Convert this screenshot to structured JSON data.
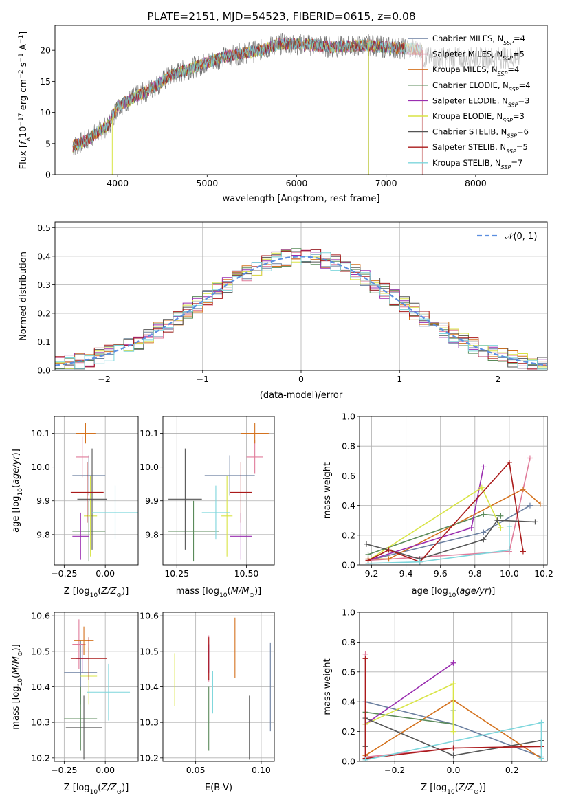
{
  "figure_title": "PLATE=2151, MJD=54523, FIBERID=0615, z=0.08",
  "series_colors": {
    "Chabrier MILES": "#6a7fa0",
    "Salpeter MILES": "#e07b9a",
    "Kroupa MILES": "#d4721e",
    "Chabrier ELODIE": "#5a8a5a",
    "Salpeter ELODIE": "#9a2eb0",
    "Kroupa ELODIE": "#d8e444",
    "Chabrier STELIB": "#555555",
    "Salpeter STELIB": "#aa1a1a",
    "Kroupa STELIB": "#7dd6dc"
  },
  "chart_data": [
    {
      "id": "spectrum",
      "type": "line",
      "title": "PLATE=2151, MJD=54523, FIBERID=0615, z=0.08",
      "xlabel": "wavelength [Angstrom, rest frame]",
      "ylabel": "Flux [f_λ 10^-17 erg cm^-2 s^-1 A^-1]",
      "xlim": [
        3300,
        8800
      ],
      "ylim": [
        0,
        24
      ],
      "xticks": [
        "4000",
        "5000",
        "6000",
        "7000",
        "8000"
      ],
      "yticks": [
        "0",
        "5",
        "10",
        "15",
        "20"
      ],
      "grid": false,
      "legend_position": "right",
      "legend": [
        "Chabrier MILES, N_SSP=4",
        "Salpeter MILES, N_SSP=5",
        "Kroupa MILES, N_SSP=4",
        "Chabrier ELODIE, N_SSP=4",
        "Salpeter ELODIE, N_SSP=3",
        "Kroupa ELODIE, N_SSP=3",
        "Chabrier STELIB, N_SSP=6",
        "Salpeter STELIB, N_SSP=5",
        "Kroupa STELIB, N_SSP=7"
      ],
      "continuum": {
        "wavelength": [
          3500,
          3650,
          3800,
          3900,
          3950,
          4000,
          4200,
          4400,
          4600,
          4800,
          5000,
          5200,
          5400,
          5600,
          5800,
          6000,
          6200,
          6400,
          6600,
          6800,
          7000,
          7200,
          7300,
          7400
        ],
        "flux": [
          4.5,
          5.5,
          7,
          8,
          9.5,
          11,
          12.5,
          14,
          16,
          17,
          18,
          19,
          19.5,
          20,
          21,
          21,
          20.8,
          20.5,
          20.7,
          20.8,
          20.5,
          20.3,
          20.2,
          20
        ]
      },
      "data_extends_to": 8500
    },
    {
      "id": "residuals",
      "type": "line",
      "xlabel": "(data-model)/error",
      "ylabel": "Normed distribution",
      "xlim": [
        -2.5,
        2.5
      ],
      "ylim": [
        0,
        0.52
      ],
      "xticks": [
        "−2",
        "−1",
        "0",
        "1",
        "2"
      ],
      "yticks": [
        "0.0",
        "0.1",
        "0.2",
        "0.3",
        "0.4",
        "0.5"
      ],
      "grid": true,
      "legend_position": "top-right",
      "legend": [
        "𝒩(0, 1)"
      ],
      "reference_curve": "normal(0,1)",
      "histogram_bin_width": 0.1
    },
    {
      "id": "age-vs-Z",
      "type": "scatter",
      "xlabel": "Z [log10(Z/Z⊙)]",
      "ylabel": "age  [log10(age/yr)]",
      "xlim": [
        -0.31,
        0.2
      ],
      "ylim": [
        9.71,
        10.15
      ],
      "xticks": [
        "−0.25",
        "0.00"
      ],
      "yticks": [
        "9.8",
        "9.9",
        "10.0",
        "10.1"
      ],
      "grid": true,
      "points": [
        {
          "series": "Chabrier MILES",
          "x": -0.1,
          "xerr": 0.1,
          "y": 9.975,
          "yerr": 0.06
        },
        {
          "series": "Salpeter MILES",
          "x": -0.14,
          "xerr": 0.04,
          "y": 10.03,
          "yerr": 0.06
        },
        {
          "series": "Kroupa MILES",
          "x": -0.12,
          "xerr": 0.06,
          "y": 10.1,
          "yerr": 0.03
        },
        {
          "series": "Chabrier ELODIE",
          "x": -0.1,
          "xerr": 0.1,
          "y": 9.81,
          "yerr": 0.09
        },
        {
          "series": "Salpeter ELODIE",
          "x": -0.15,
          "xerr": 0.05,
          "y": 9.795,
          "yerr": 0.07
        },
        {
          "series": "Kroupa ELODIE",
          "x": -0.09,
          "xerr": 0.04,
          "y": 9.855,
          "yerr": 0.12
        },
        {
          "series": "Chabrier STELIB",
          "x": -0.08,
          "xerr": 0.09,
          "y": 9.905,
          "yerr": 0.15
        },
        {
          "series": "Salpeter STELIB",
          "x": -0.11,
          "xerr": 0.1,
          "y": 9.925,
          "yerr": 0.09
        },
        {
          "series": "Kroupa STELIB",
          "x": 0.06,
          "xerr": 0.14,
          "y": 9.865,
          "yerr": 0.08
        }
      ]
    },
    {
      "id": "age-vs-mass",
      "type": "scatter",
      "xlabel": "mass [log10(M/M⊙)]",
      "ylabel": "",
      "xlim": [
        10.2,
        10.6
      ],
      "ylim": [
        9.71,
        10.15
      ],
      "xticks": [
        "10.25",
        "10.50"
      ],
      "yticks": [
        "9.8",
        "9.9",
        "10.0",
        "10.1"
      ],
      "grid": true,
      "points": [
        {
          "series": "Chabrier MILES",
          "x": 10.44,
          "xerr": 0.09,
          "y": 9.975,
          "yerr": 0.06
        },
        {
          "series": "Salpeter MILES",
          "x": 10.53,
          "xerr": 0.03,
          "y": 10.03,
          "yerr": 0.05
        },
        {
          "series": "Kroupa MILES",
          "x": 10.53,
          "xerr": 0.05,
          "y": 10.1,
          "yerr": 0.03
        },
        {
          "series": "Chabrier ELODIE",
          "x": 10.31,
          "xerr": 0.09,
          "y": 9.81,
          "yerr": 0.09
        },
        {
          "series": "Salpeter ELODIE",
          "x": 10.48,
          "xerr": 0.04,
          "y": 9.795,
          "yerr": 0.07
        },
        {
          "series": "Kroupa ELODIE",
          "x": 10.43,
          "xerr": 0.02,
          "y": 9.855,
          "yerr": 0.12
        },
        {
          "series": "Chabrier STELIB",
          "x": 10.28,
          "xerr": 0.06,
          "y": 9.905,
          "yerr": 0.15
        },
        {
          "series": "Salpeter STELIB",
          "x": 10.48,
          "xerr": 0.04,
          "y": 9.925,
          "yerr": 0.09
        },
        {
          "series": "Kroupa STELIB",
          "x": 10.39,
          "xerr": 0.05,
          "y": 9.865,
          "yerr": 0.08
        }
      ]
    },
    {
      "id": "weight-vs-age",
      "type": "line",
      "xlabel": "age  [log10(age/yr)]",
      "ylabel": "mass weight",
      "xlim": [
        9.13,
        10.22
      ],
      "ylim": [
        0,
        1.0
      ],
      "xticks": [
        "9.2",
        "9.4",
        "9.6",
        "9.8",
        "10.0",
        "10.2"
      ],
      "yticks": [
        "0.0",
        "0.2",
        "0.4",
        "0.6",
        "0.8",
        "1.0"
      ],
      "grid": true,
      "series": [
        {
          "series": "Chabrier MILES",
          "x": [
            9.18,
            9.85,
            10.12
          ],
          "y": [
            0.03,
            0.22,
            0.4
          ]
        },
        {
          "series": "Salpeter MILES",
          "x": [
            9.18,
            10.0,
            10.12
          ],
          "y": [
            0.03,
            0.09,
            0.72
          ]
        },
        {
          "series": "Kroupa MILES",
          "x": [
            9.18,
            9.3,
            10.08,
            10.18
          ],
          "y": [
            0.04,
            0.04,
            0.51,
            0.41
          ]
        },
        {
          "series": "Chabrier ELODIE",
          "x": [
            9.18,
            9.85,
            9.95
          ],
          "y": [
            0.07,
            0.34,
            0.33
          ]
        },
        {
          "series": "Salpeter ELODIE",
          "x": [
            9.18,
            9.78,
            9.85
          ],
          "y": [
            0.03,
            0.25,
            0.66
          ]
        },
        {
          "series": "Kroupa ELODIE",
          "x": [
            9.18,
            9.84,
            9.95
          ],
          "y": [
            0.03,
            0.52,
            0.25
          ]
        },
        {
          "series": "Chabrier STELIB",
          "x": [
            9.17,
            9.3,
            9.48,
            9.85,
            9.93,
            10.15
          ],
          "y": [
            0.14,
            0.1,
            0.04,
            0.17,
            0.3,
            0.29
          ]
        },
        {
          "series": "Salpeter STELIB",
          "x": [
            9.18,
            9.3,
            9.48,
            10.0,
            10.08
          ],
          "y": [
            0.03,
            0.1,
            0.02,
            0.69,
            0.09
          ]
        },
        {
          "series": "Kroupa STELIB",
          "x": [
            9.18,
            9.48,
            10.0,
            10.0
          ],
          "y": [
            0.01,
            0.02,
            0.1,
            0.26
          ]
        }
      ]
    },
    {
      "id": "mass-vs-Z",
      "type": "scatter",
      "xlabel": "Z [log10(Z/Z⊙)]",
      "ylabel": "mass [log10(M/M⊙)]",
      "xlim": [
        -0.31,
        0.2
      ],
      "ylim": [
        10.19,
        10.61
      ],
      "xticks": [
        "−0.25",
        "0.00"
      ],
      "yticks": [
        "10.2",
        "10.3",
        "10.4",
        "10.5",
        "10.6"
      ],
      "grid": true,
      "points": [
        {
          "series": "Chabrier MILES",
          "x": -0.15,
          "xerr": 0.1,
          "y": 10.44,
          "yerr": 0.09
        },
        {
          "series": "Salpeter MILES",
          "x": -0.16,
          "xerr": 0.04,
          "y": 10.52,
          "yerr": 0.07
        },
        {
          "series": "Kroupa MILES",
          "x": -0.13,
          "xerr": 0.06,
          "y": 10.53,
          "yerr": 0.04
        },
        {
          "series": "Chabrier ELODIE",
          "x": -0.15,
          "xerr": 0.1,
          "y": 10.31,
          "yerr": 0.09
        },
        {
          "series": "Salpeter ELODIE",
          "x": -0.14,
          "xerr": 0.04,
          "y": 10.48,
          "yerr": 0.04
        },
        {
          "series": "Kroupa ELODIE",
          "x": -0.1,
          "xerr": 0.05,
          "y": 10.43,
          "yerr": 0.08
        },
        {
          "series": "Chabrier STELIB",
          "x": -0.13,
          "xerr": 0.11,
          "y": 10.285,
          "yerr": 0.09
        },
        {
          "series": "Salpeter STELIB",
          "x": -0.1,
          "xerr": 0.11,
          "y": 10.48,
          "yerr": 0.06
        },
        {
          "series": "Kroupa STELIB",
          "x": 0.02,
          "xerr": 0.13,
          "y": 10.385,
          "yerr": 0.08
        }
      ]
    },
    {
      "id": "mass-vs-ebv",
      "type": "scatter",
      "xlabel": "E(B-V)",
      "ylabel": "",
      "xlim": [
        0.025,
        0.11
      ],
      "ylim": [
        10.19,
        10.61
      ],
      "xticks": [
        "0.05",
        "0.10"
      ],
      "yticks": [
        "10.2",
        "10.3",
        "10.4",
        "10.5",
        "10.6"
      ],
      "grid": true,
      "points": [
        {
          "series": "Chabrier MILES",
          "x": 0.107,
          "y": 10.4,
          "yerr": 0.125
        },
        {
          "series": "Salpeter MILES",
          "x": 0.06,
          "y": 10.48,
          "yerr": 0.065
        },
        {
          "series": "Kroupa MILES",
          "x": 0.08,
          "y": 10.51,
          "yerr": 0.085
        },
        {
          "series": "Chabrier ELODIE",
          "x": 0.06,
          "y": 10.31,
          "yerr": 0.09
        },
        {
          "series": "Salpeter ELODIE",
          "x": 0.06,
          "y": 10.48,
          "yerr": 0.04
        },
        {
          "series": "Kroupa ELODIE",
          "x": 0.034,
          "y": 10.42,
          "yerr": 0.075
        },
        {
          "series": "Chabrier STELIB",
          "x": 0.091,
          "y": 10.285,
          "yerr": 0.09
        },
        {
          "series": "Salpeter STELIB",
          "x": 0.06,
          "y": 10.48,
          "yerr": 0.06
        },
        {
          "series": "Kroupa STELIB",
          "x": 0.063,
          "y": 10.385,
          "yerr": 0.06
        }
      ]
    },
    {
      "id": "weight-vs-Z",
      "type": "line",
      "xlabel": "Z [log10(Z/Z⊙)]",
      "ylabel": "mass weight",
      "xlim": [
        -0.32,
        0.32
      ],
      "ylim": [
        0,
        1.0
      ],
      "xticks": [
        "−0.2",
        "0.0",
        "0.2"
      ],
      "yticks": [
        "0.0",
        "0.2",
        "0.4",
        "0.6",
        "0.8",
        "1.0"
      ],
      "grid": true,
      "series": [
        {
          "series": "Chabrier MILES",
          "x": [
            -0.3,
            0.0,
            0.3
          ],
          "y": [
            0.4,
            0.25,
            0.03
          ]
        },
        {
          "series": "Salpeter MILES",
          "x": [
            -0.3,
            -0.3,
            0.0,
            0.3
          ],
          "y": [
            0.72,
            0.03,
            0.09,
            0.1
          ]
        },
        {
          "series": "Kroupa MILES",
          "x": [
            -0.3,
            0.0,
            0.3
          ],
          "y": [
            0.04,
            0.41,
            0.02
          ]
        },
        {
          "series": "Chabrier ELODIE",
          "x": [
            -0.3,
            0.0,
            0.0
          ],
          "y": [
            0.33,
            0.25,
            0.34
          ]
        },
        {
          "series": "Salpeter ELODIE",
          "x": [
            -0.3,
            0.0
          ],
          "y": [
            0.25,
            0.66
          ]
        },
        {
          "series": "Kroupa ELODIE",
          "x": [
            -0.3,
            0.0,
            0.0
          ],
          "y": [
            0.25,
            0.52,
            0.2
          ]
        },
        {
          "series": "Chabrier STELIB",
          "x": [
            -0.3,
            -0.3,
            0.0,
            0.3,
            0.3
          ],
          "y": [
            0.1,
            0.29,
            0.04,
            0.14,
            0.1
          ]
        },
        {
          "series": "Salpeter STELIB",
          "x": [
            -0.3,
            -0.3,
            0.0,
            0.3
          ],
          "y": [
            0.69,
            0.02,
            0.09,
            0.1
          ]
        },
        {
          "series": "Kroupa STELIB",
          "x": [
            -0.3,
            0.3,
            0.3
          ],
          "y": [
            0.01,
            0.26,
            0.02
          ]
        }
      ]
    }
  ]
}
